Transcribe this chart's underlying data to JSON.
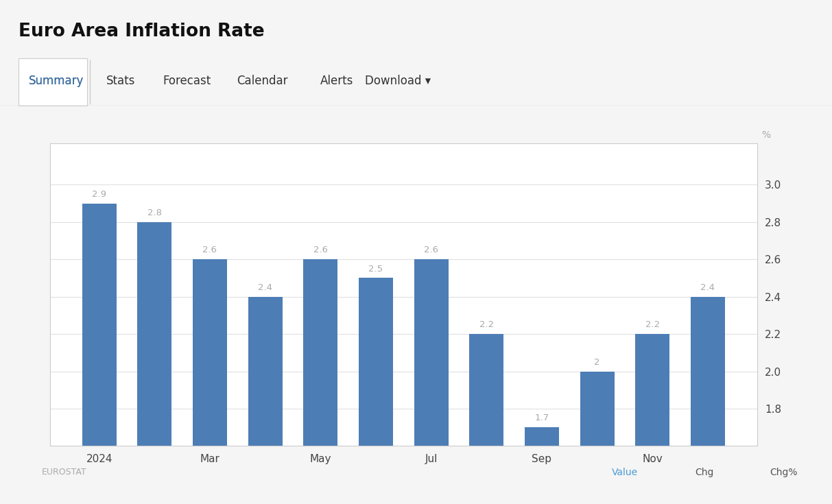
{
  "title": "Euro Area Inflation Rate",
  "nav_items": [
    "Summary",
    "Stats",
    "Forecast",
    "Calendar",
    "Alerts",
    "Download ▾"
  ],
  "x_labels": [
    "2024",
    "",
    "Mar",
    "",
    "May",
    "",
    "Jul",
    "",
    "Sep",
    "",
    "Nov",
    ""
  ],
  "values": [
    2.9,
    2.8,
    2.6,
    2.4,
    2.6,
    2.5,
    2.6,
    2.2,
    1.7,
    2.0,
    2.2,
    2.4
  ],
  "bar_color": "#4d7db5",
  "overall_bg": "#f5f5f5",
  "header_bg": "#ebebeb",
  "nav_bg": "#ffffff",
  "chart_bg": "#ffffff",
  "ylim_min": 1.6,
  "ylim_max": 3.22,
  "yticks": [
    1.8,
    2.0,
    2.2,
    2.4,
    2.6,
    2.8,
    3.0
  ],
  "footer_left": "EUROSTAT",
  "footer_right_items": [
    "Value",
    "Chg",
    "Chg%"
  ],
  "footer_value_color": "#4d9bd4",
  "footer_chg_color": "#555555",
  "grid_color": "#e0e0e0",
  "bar_label_color": "#aaaaaa",
  "bar_label_fontsize": 9.5,
  "axis_tick_fontsize": 11,
  "title_fontsize": 19,
  "nav_fontsize": 12,
  "summary_color": "#3d6fa0",
  "nav_color": "#333333",
  "percent_label_color": "#aaaaaa"
}
